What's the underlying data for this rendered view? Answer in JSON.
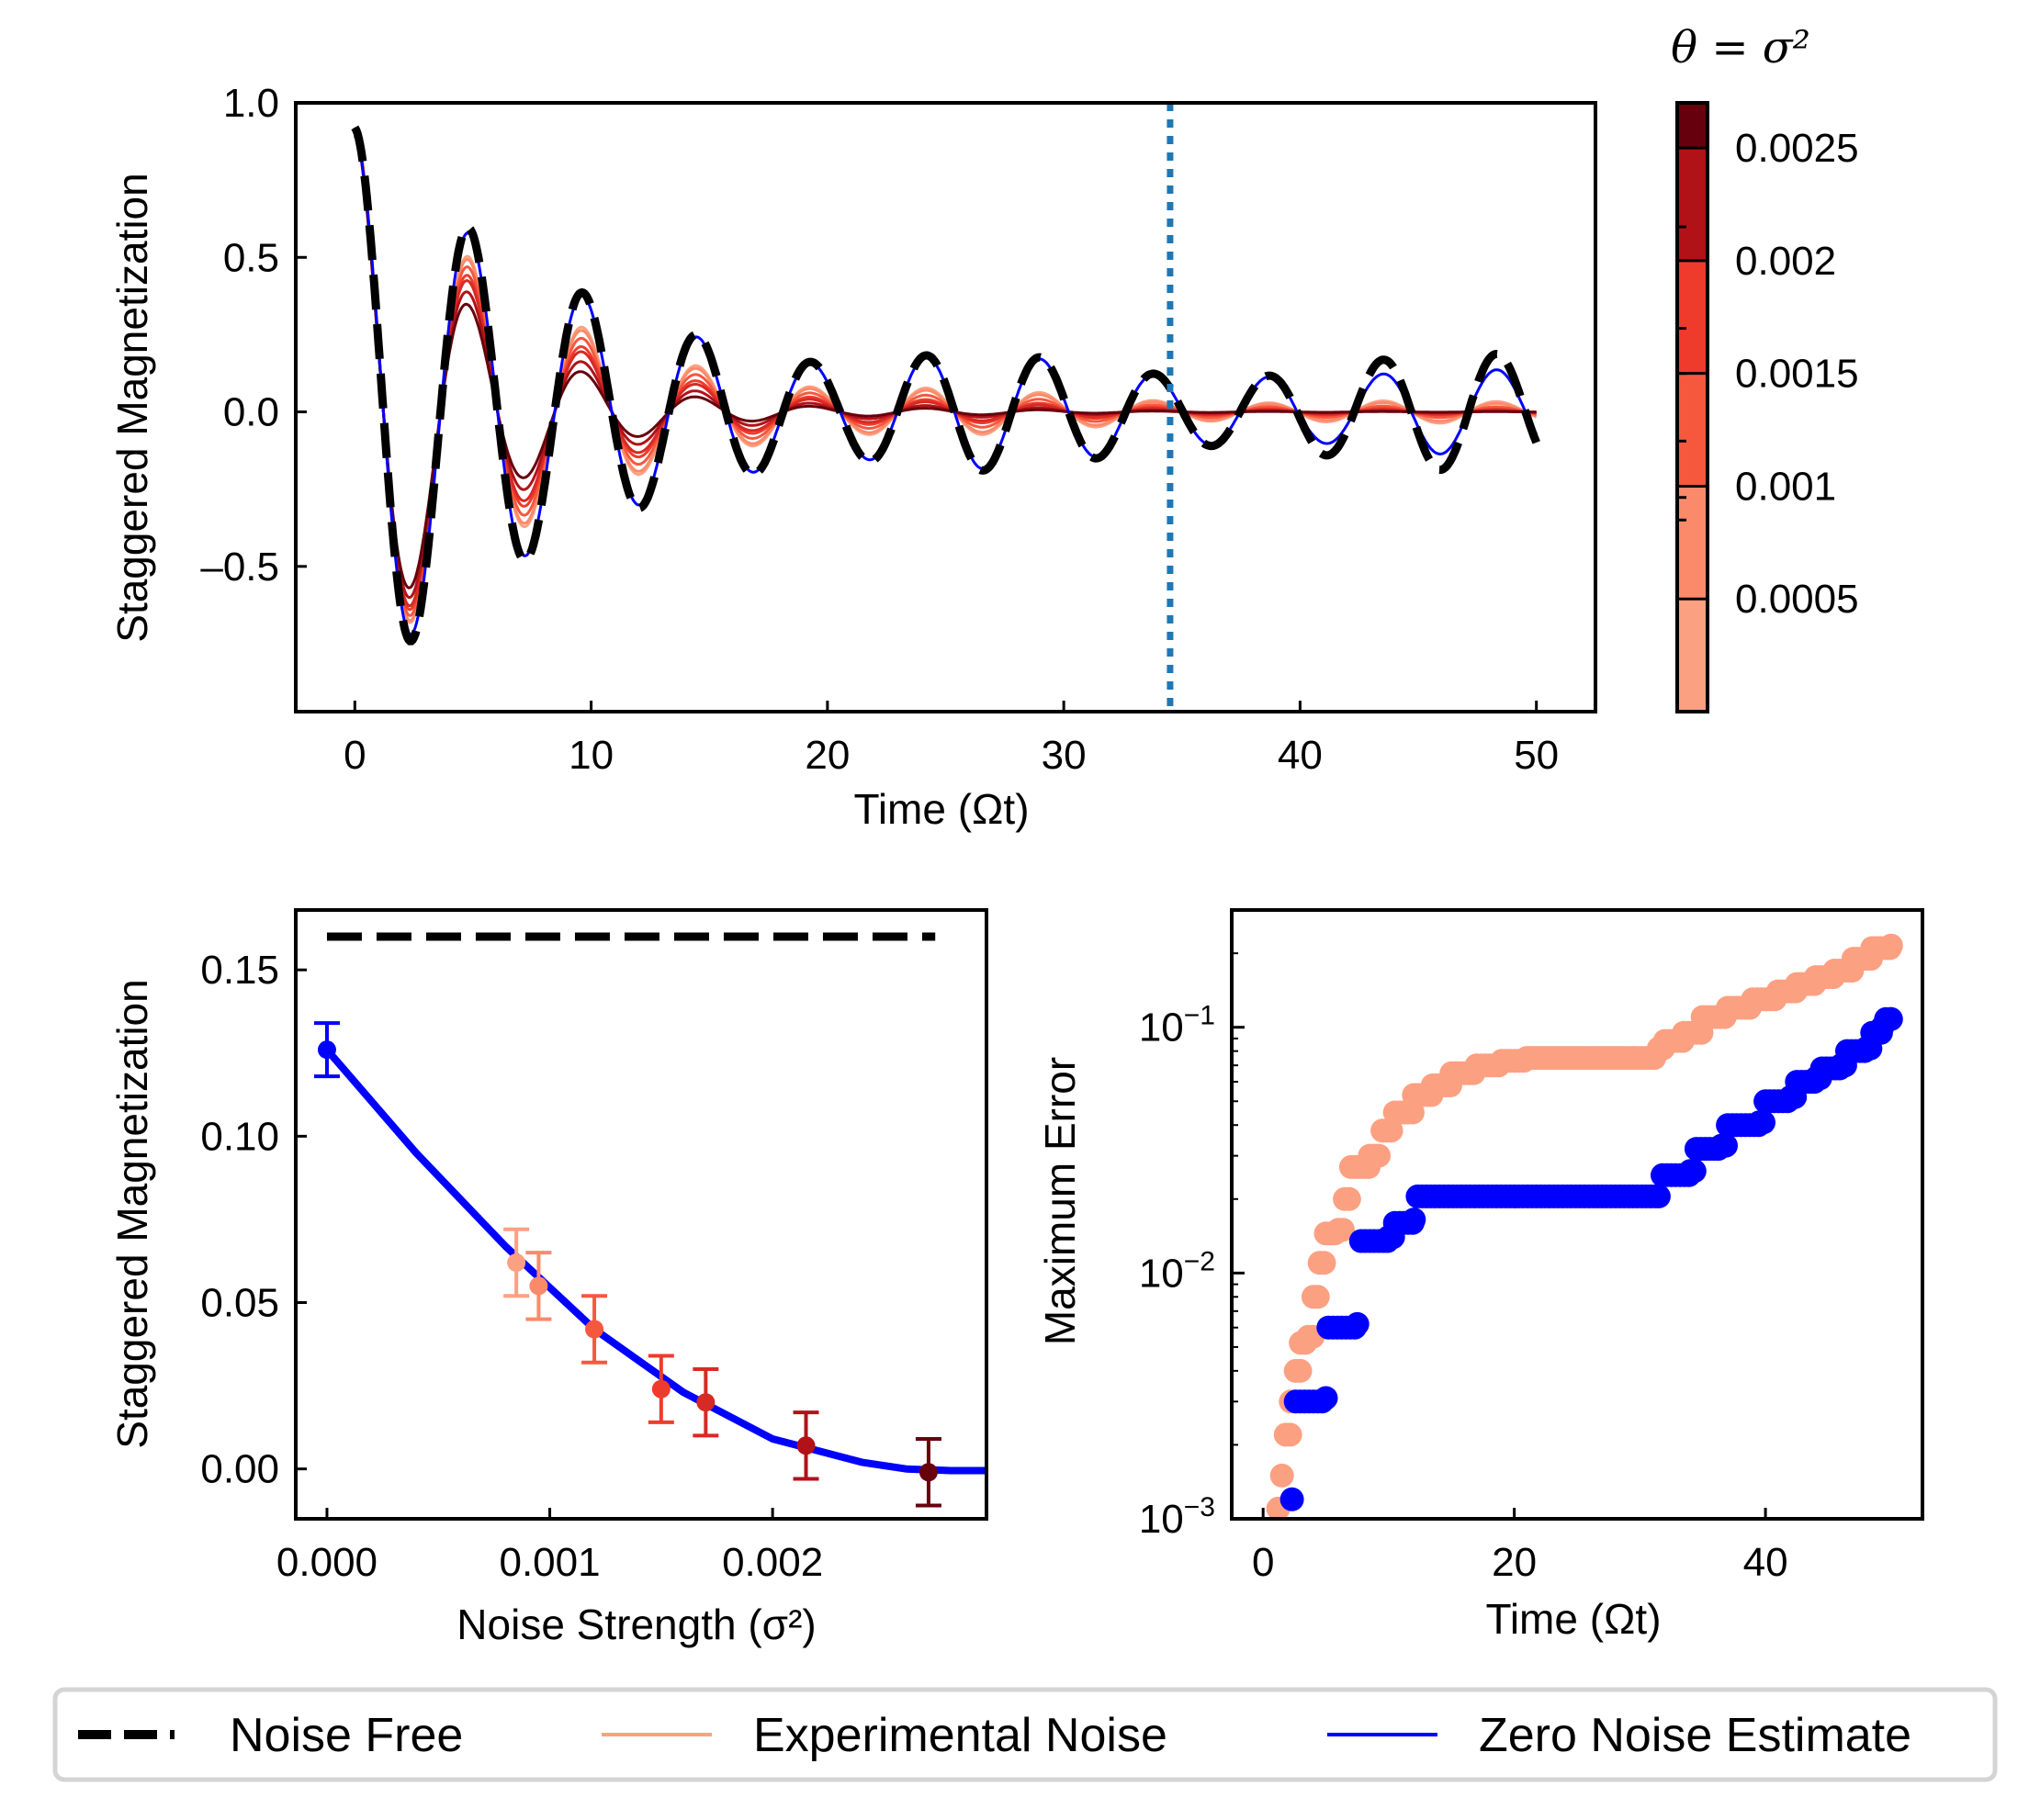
{
  "chart_data": [
    {
      "id": "top",
      "type": "line",
      "xlabel": "Time (Ωt)",
      "ylabel": "Staggered Magnetization",
      "xlim": [
        -2.5,
        52.5
      ],
      "ylim": [
        -0.97,
        1.0
      ],
      "xticks": [
        0,
        10,
        20,
        30,
        40,
        50
      ],
      "xtick_labels": [
        "0",
        "10",
        "20",
        "30",
        "40",
        "50"
      ],
      "yticks": [
        1.0,
        0.5,
        0.0,
        -0.5
      ],
      "ytick_labels": [
        "1.0",
        "0.5",
        "0.0",
        "–0.5"
      ],
      "vline_x": 34.5,
      "vline_color": "#1f77b4",
      "signal_model": {
        "description_free": "noise free curve",
        "frequency": 1.3,
        "amplitude": 0.92,
        "decay": 0.03,
        "floor": 0.15
      },
      "series": [
        {
          "name": "Noise Free",
          "x_range": [
            0,
            50
          ],
          "style": "dashed",
          "color": "#000000"
        },
        {
          "name": "Experimental Noise",
          "x_range": [
            0,
            50
          ],
          "noise_levels": [
            0.00085,
            0.00095,
            0.0012,
            0.0015,
            0.0017,
            0.00215,
            0.0027
          ],
          "colors": [
            "#fca082",
            "#fb8a6a",
            "#f6583e",
            "#ef3b2c",
            "#d72a24",
            "#b11218",
            "#67000d"
          ]
        },
        {
          "name": "Zero Noise Estimate",
          "x_range": [
            0,
            50
          ],
          "color": "#0000ff"
        }
      ]
    },
    {
      "id": "colorbar",
      "type": "colorbar",
      "title": "θ = σ²",
      "range": [
        0.0,
        0.0027
      ],
      "ticks": [
        0.0005,
        0.001,
        0.0015,
        0.002,
        0.0025
      ],
      "tick_labels": [
        "0.0005",
        "0.001",
        "0.0015",
        "0.002",
        "0.0025"
      ],
      "levels": [
        0.00085,
        0.00095,
        0.0012,
        0.0015,
        0.0017,
        0.00215,
        0.0027
      ],
      "colors": [
        "#fca082",
        "#fb8a6a",
        "#f6583e",
        "#ef3b2c",
        "#d72a24",
        "#b11218",
        "#67000d"
      ]
    },
    {
      "id": "bottom-left",
      "type": "scatter",
      "xlabel": "Noise Strength (σ²)",
      "ylabel": "Staggered Magnetization",
      "xlim": [
        -0.00014,
        0.00296
      ],
      "ylim": [
        -0.015,
        0.168
      ],
      "xticks": [
        0.0,
        0.001,
        0.002
      ],
      "xtick_labels": [
        "0.000",
        "0.001",
        "0.002"
      ],
      "yticks": [
        0.15,
        0.1,
        0.05,
        0.0
      ],
      "ytick_labels": [
        "0.15",
        "0.10",
        "0.05",
        "0.00"
      ],
      "noise_free_level": 0.16,
      "noise_free_x": [
        0.0,
        0.00273
      ],
      "points": [
        {
          "x": 0.00085,
          "y": 0.062,
          "err": 0.01,
          "color": "#fca082"
        },
        {
          "x": 0.00095,
          "y": 0.055,
          "err": 0.01,
          "color": "#fb8a6a"
        },
        {
          "x": 0.0012,
          "y": 0.042,
          "err": 0.01,
          "color": "#f6583e"
        },
        {
          "x": 0.0015,
          "y": 0.024,
          "err": 0.01,
          "color": "#ef3b2c"
        },
        {
          "x": 0.0017,
          "y": 0.02,
          "err": 0.01,
          "color": "#d72a24"
        },
        {
          "x": 0.00215,
          "y": 0.007,
          "err": 0.01,
          "color": "#b11218"
        },
        {
          "x": 0.0027,
          "y": -0.001,
          "err": 0.01,
          "color": "#67000d"
        }
      ],
      "estimate": {
        "x": 0.0,
        "y": 0.126,
        "err": 0.008,
        "color": "#0000ff"
      },
      "fit": {
        "color": "#0000ff",
        "x": [
          0.0,
          0.0004,
          0.0008,
          0.0012,
          0.0016,
          0.002,
          0.0024,
          0.0026,
          0.0028,
          0.00296
        ],
        "y": [
          0.126,
          0.095,
          0.067,
          0.042,
          0.023,
          0.009,
          0.002,
          0.0,
          -0.0005,
          -0.0005
        ]
      }
    },
    {
      "id": "bottom-right",
      "type": "scatter",
      "xlabel": "Time (Ωt)",
      "ylabel": "Maximum Error",
      "yscale": "log",
      "xlim": [
        -2.5,
        52.5
      ],
      "ylim": [
        0.001,
        0.3
      ],
      "xticks": [
        0,
        20,
        40
      ],
      "xtick_labels": [
        "0",
        "20",
        "40"
      ],
      "ytick_values": [
        0.001,
        0.01,
        0.1
      ],
      "ytick_bases": [
        "10",
        "10",
        "10"
      ],
      "ytick_exps": [
        "−3",
        "−2",
        "−1"
      ],
      "series": [
        {
          "name": "Experimental Noise",
          "color": "#fca082",
          "steps": [
            [
              1.2,
              0.0011
            ],
            [
              1.5,
              0.0015
            ],
            [
              1.8,
              0.0022
            ],
            [
              2.2,
              0.003
            ],
            [
              2.6,
              0.004
            ],
            [
              3.0,
              0.0052
            ],
            [
              3.6,
              0.0055
            ],
            [
              4.0,
              0.008
            ],
            [
              4.5,
              0.011
            ],
            [
              5.0,
              0.0145
            ],
            [
              6.0,
              0.015
            ],
            [
              6.5,
              0.02
            ],
            [
              7.0,
              0.027
            ],
            [
              8.5,
              0.03
            ],
            [
              9.5,
              0.038
            ],
            [
              10.5,
              0.045
            ],
            [
              12.0,
              0.053
            ],
            [
              13.5,
              0.058
            ],
            [
              15.0,
              0.065
            ],
            [
              17.0,
              0.07
            ],
            [
              19.0,
              0.073
            ],
            [
              21.0,
              0.075
            ],
            [
              31.5,
              0.082
            ],
            [
              32.0,
              0.088
            ],
            [
              33.5,
              0.095
            ],
            [
              35.0,
              0.11
            ],
            [
              37.0,
              0.12
            ],
            [
              39.0,
              0.13
            ],
            [
              41.0,
              0.14
            ],
            [
              42.5,
              0.15
            ],
            [
              44.0,
              0.16
            ],
            [
              45.5,
              0.17
            ],
            [
              47.0,
              0.19
            ],
            [
              48.5,
              0.21
            ],
            [
              50.0,
              0.215
            ]
          ]
        },
        {
          "name": "Zero Noise Estimate",
          "color": "#0000ff",
          "steps": [
            [
              2.3,
              0.0012
            ],
            [
              2.6,
              0.003
            ],
            [
              5.0,
              0.0031
            ],
            [
              5.2,
              0.006
            ],
            [
              7.5,
              0.0062
            ],
            [
              7.8,
              0.0135
            ],
            [
              10.0,
              0.014
            ],
            [
              10.5,
              0.016
            ],
            [
              12.0,
              0.0165
            ],
            [
              12.3,
              0.0205
            ],
            [
              31.5,
              0.0205
            ],
            [
              31.8,
              0.025
            ],
            [
              34.0,
              0.026
            ],
            [
              34.5,
              0.032
            ],
            [
              36.5,
              0.033
            ],
            [
              37.0,
              0.04
            ],
            [
              39.5,
              0.041
            ],
            [
              40.0,
              0.05
            ],
            [
              42.0,
              0.052
            ],
            [
              42.5,
              0.06
            ],
            [
              44.0,
              0.062
            ],
            [
              44.5,
              0.068
            ],
            [
              46.0,
              0.07
            ],
            [
              46.5,
              0.08
            ],
            [
              48.0,
              0.082
            ],
            [
              48.5,
              0.095
            ],
            [
              49.3,
              0.1
            ],
            [
              49.6,
              0.108
            ],
            [
              50.0,
              0.108
            ]
          ]
        }
      ]
    }
  ],
  "legend": {
    "items": [
      {
        "label": "Noise Free",
        "color": "#000000",
        "style": "dashed"
      },
      {
        "label": "Experimental Noise",
        "color": "#fca082",
        "style": "solid"
      },
      {
        "label": "Zero Noise Estimate",
        "color": "#0000ff",
        "style": "solid"
      }
    ]
  }
}
